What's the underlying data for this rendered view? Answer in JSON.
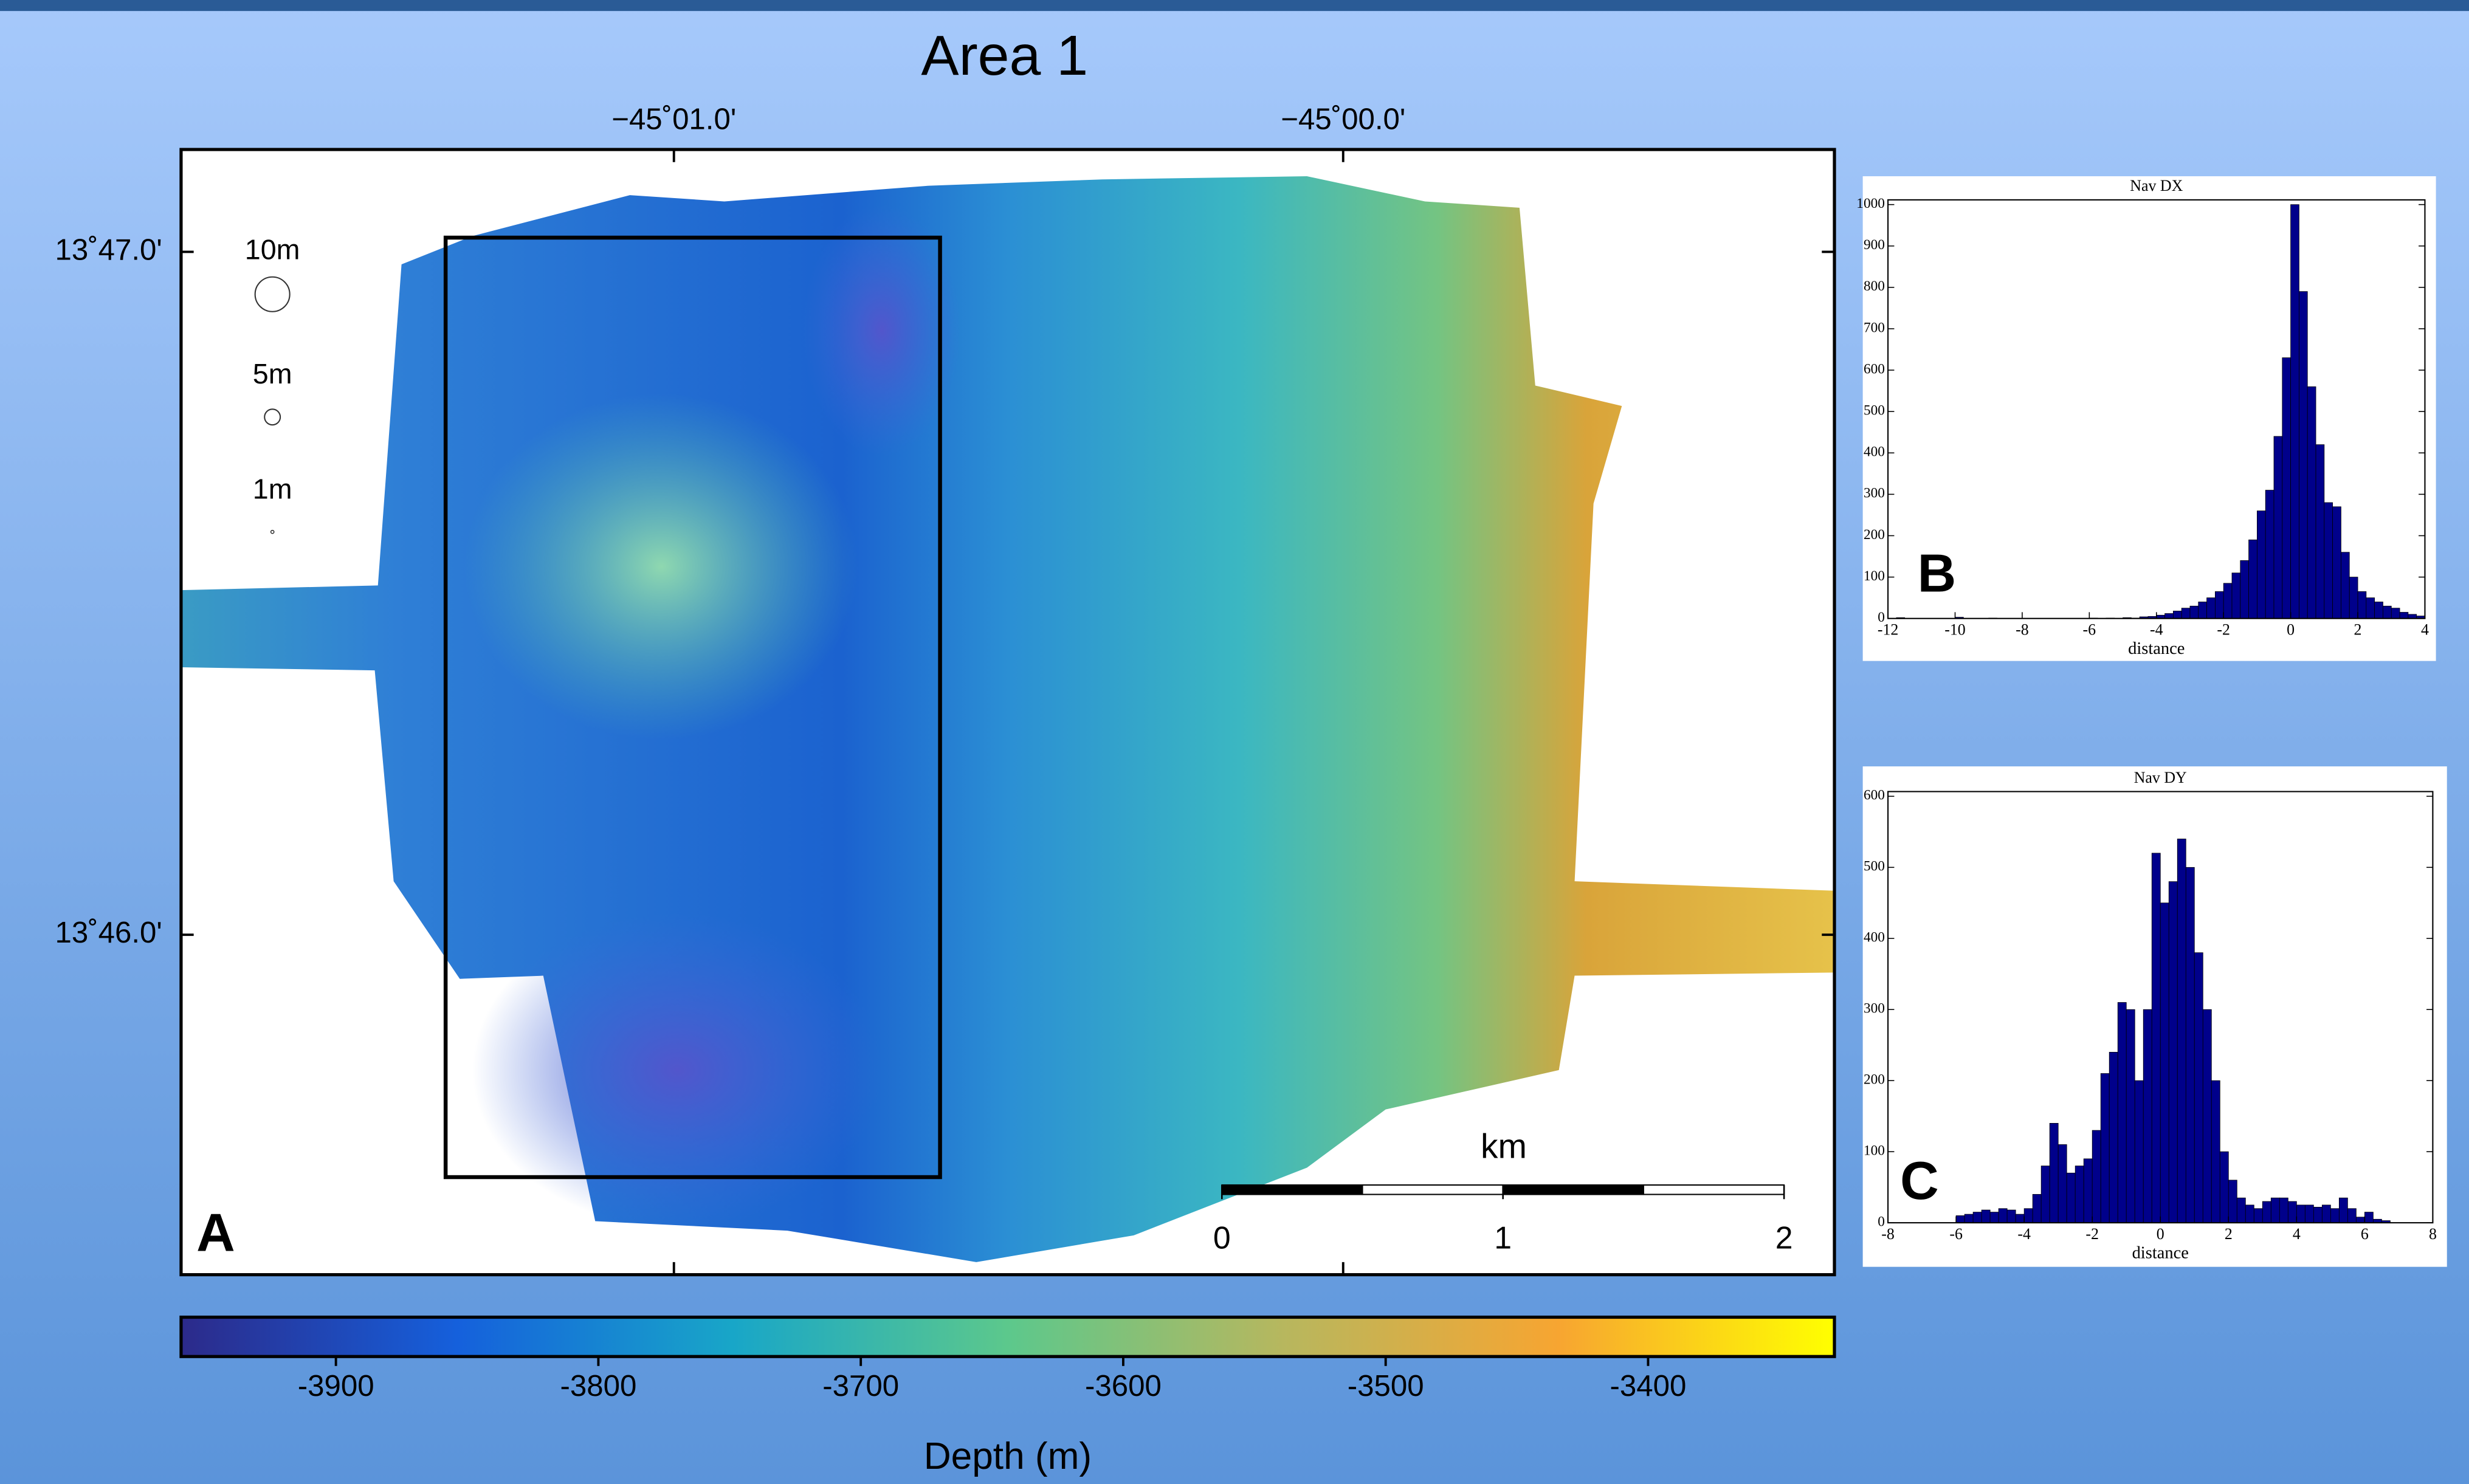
{
  "chart_data": [
    {
      "type": "map",
      "title": "Area 1",
      "panel_label": "A",
      "xlim": [
        -45.028941,
        -44.987765
      ],
      "xticks": [
        {
          "value": -45.016667,
          "label": "−45˚01.0'"
        },
        {
          "value": -45,
          "label": "−45˚00.0'"
        }
      ],
      "ylim": [
        13.758372,
        13.78583
      ],
      "yticks": [
        {
          "value": 13.766667,
          "label": "13˚46.0'"
        },
        {
          "value": 13.783333,
          "label": "13˚47.0'"
        }
      ],
      "size_legend": [
        "10m",
        "5m",
        "1m"
      ],
      "scale_bar": {
        "unit": "km",
        "ticks": [
          0,
          1,
          2
        ]
      }
    },
    {
      "type": "colorbar",
      "xlabel": "Depth (m)",
      "xlim": [
        -3959,
        -3329
      ],
      "xticks": [
        -3900,
        -3800,
        -3700,
        -3600,
        -3500,
        -3400
      ],
      "colormap": [
        "#2c2a8a",
        "#1560dc",
        "#18a6c8",
        "#5cc88c",
        "#b7b75e",
        "#f7a531",
        "#ffff00"
      ]
    },
    {
      "type": "histogram",
      "title": "Nav DX",
      "xlabel": "distance",
      "panel_label": "B",
      "color": "#00008b",
      "bins": [
        -12,
        -11.75,
        -11.5,
        -11.25,
        -11,
        -10.75,
        -10.5,
        -10.25,
        -10,
        -9.75,
        -9.5,
        -9.25,
        -9,
        -8.75,
        -8.5,
        -8.25,
        -8,
        -7.75,
        -7.5,
        -7.25,
        -7,
        -6.75,
        -6.5,
        -6.25,
        -6,
        -5.75,
        -5.5,
        -5.25,
        -5,
        -4.75,
        -4.5,
        -4.25,
        -4,
        -3.75,
        -3.5,
        -3.25,
        -3,
        -2.75,
        -2.5,
        -2.25,
        -2,
        -1.75,
        -1.5,
        -1.25,
        -1,
        -0.75,
        -0.5,
        -0.25,
        0,
        0.25,
        0.5,
        0.75,
        1,
        1.25,
        1.5,
        1.75,
        2,
        2.25,
        2.5,
        2.75,
        3,
        3.25,
        3.5,
        3.75,
        4
      ],
      "values": [
        0,
        2,
        0,
        0,
        0,
        0,
        0,
        0,
        3,
        0,
        0,
        0,
        1,
        0,
        0,
        0,
        0,
        0,
        0,
        0,
        0,
        0,
        0,
        0,
        1,
        0,
        1,
        0,
        2,
        1,
        4,
        5,
        8,
        12,
        18,
        25,
        30,
        40,
        50,
        65,
        85,
        110,
        140,
        190,
        260,
        310,
        440,
        630,
        1000,
        790,
        560,
        420,
        280,
        270,
        160,
        100,
        65,
        50,
        40,
        30,
        25,
        15,
        10,
        6
      ],
      "xlim": [
        -12,
        4
      ],
      "xticks": [
        -12,
        -10,
        -8,
        -6,
        -4,
        -2,
        0,
        2,
        4
      ],
      "ylim": [
        0,
        1000
      ],
      "yticks": [
        0,
        100,
        200,
        300,
        400,
        500,
        600,
        700,
        800,
        900,
        1000
      ]
    },
    {
      "type": "histogram",
      "title": "Nav DY",
      "xlabel": "distance",
      "panel_label": "C",
      "color": "#00008b",
      "bins": [
        -8,
        -7.75,
        -7.5,
        -7.25,
        -7,
        -6.75,
        -6.5,
        -6.25,
        -6,
        -5.75,
        -5.5,
        -5.25,
        -5,
        -4.75,
        -4.5,
        -4.25,
        -4,
        -3.75,
        -3.5,
        -3.25,
        -3,
        -2.75,
        -2.5,
        -2.25,
        -2,
        -1.75,
        -1.5,
        -1.25,
        -1,
        -0.75,
        -0.5,
        -0.25,
        0,
        0.25,
        0.5,
        0.75,
        1,
        1.25,
        1.5,
        1.75,
        2,
        2.25,
        2.5,
        2.75,
        3,
        3.25,
        3.5,
        3.75,
        4,
        4.25,
        4.5,
        4.75,
        5,
        5.25,
        5.5,
        5.75,
        6,
        6.25,
        6.5,
        6.75,
        7,
        7.25,
        7.5,
        7.75,
        8
      ],
      "values": [
        0,
        0,
        0,
        0,
        0,
        0,
        0,
        0,
        10,
        12,
        15,
        18,
        15,
        20,
        18,
        12,
        20,
        40,
        80,
        140,
        110,
        70,
        80,
        90,
        130,
        210,
        240,
        310,
        300,
        200,
        300,
        520,
        450,
        480,
        540,
        500,
        380,
        300,
        200,
        100,
        60,
        35,
        25,
        20,
        30,
        35,
        35,
        30,
        25,
        25,
        22,
        25,
        20,
        35,
        20,
        8,
        15,
        5,
        3,
        0,
        0,
        0,
        0,
        0
      ],
      "xlim": [
        -8,
        8
      ],
      "xticks": [
        -8,
        -6,
        -4,
        -2,
        0,
        2,
        4,
        6,
        8
      ],
      "ylim": [
        0,
        600
      ],
      "yticks": [
        0,
        100,
        200,
        300,
        400,
        500,
        600
      ]
    }
  ]
}
